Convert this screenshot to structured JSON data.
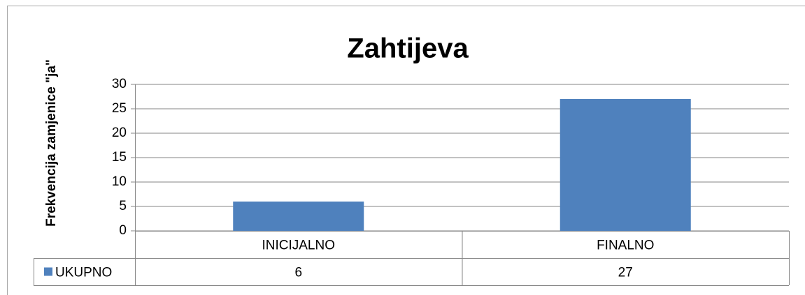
{
  "chart_data": {
    "type": "bar",
    "title": "Zahtijeva",
    "ylabel": "Frekvencija zamjenice \"ja\"",
    "categories": [
      "INICIJALNO",
      "FINALNO"
    ],
    "series": [
      {
        "name": "UKUPNO",
        "color": "#4f81bd",
        "values": [
          6,
          27
        ]
      }
    ],
    "ylim": [
      0,
      30
    ],
    "yticks": [
      0,
      5,
      10,
      15,
      20,
      25,
      30
    ],
    "grid": true,
    "data_table": true
  }
}
